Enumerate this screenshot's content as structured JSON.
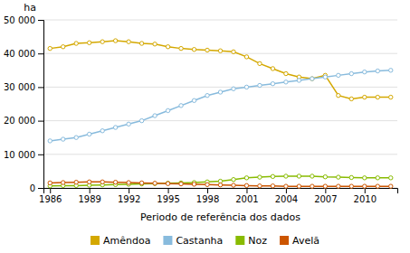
{
  "chart_data": {
    "type": "line",
    "xlabel": "Periodo de referência dos dados",
    "ylabel": "ha",
    "x": [
      1986,
      1987,
      1988,
      1989,
      1990,
      1991,
      1992,
      1993,
      1994,
      1995,
      1996,
      1997,
      1998,
      1999,
      2000,
      2001,
      2002,
      2003,
      2004,
      2005,
      2006,
      2007,
      2008,
      2009,
      2010,
      2011,
      2012
    ],
    "series": [
      {
        "name": "Amêndoa",
        "color": "#D4A800",
        "marker": "circle",
        "values": [
          41500,
          42000,
          43000,
          43200,
          43500,
          43800,
          43500,
          43000,
          42800,
          42000,
          41500,
          41200,
          41000,
          40800,
          40500,
          39000,
          37000,
          35500,
          34000,
          33000,
          32500,
          33500,
          27500,
          26500,
          27000,
          27000,
          27000
        ]
      },
      {
        "name": "Castanha",
        "color": "#88BBDD",
        "marker": "circle",
        "values": [
          14000,
          14500,
          15000,
          16000,
          17000,
          18000,
          19000,
          20000,
          21500,
          23000,
          24500,
          26000,
          27500,
          28500,
          29500,
          30000,
          30500,
          31000,
          31500,
          32000,
          32500,
          33000,
          33500,
          34000,
          34500,
          34800,
          35000
        ]
      },
      {
        "name": "Noz",
        "color": "#88BB00",
        "marker": "circle",
        "values": [
          600,
          700,
          700,
          800,
          900,
          1000,
          1100,
          1200,
          1300,
          1400,
          1500,
          1600,
          1800,
          2000,
          2500,
          3000,
          3200,
          3400,
          3500,
          3500,
          3500,
          3300,
          3200,
          3100,
          3000,
          3000,
          3000
        ]
      },
      {
        "name": "Avelã",
        "color": "#CC5500",
        "marker": "circle",
        "values": [
          1500,
          1600,
          1700,
          1800,
          1800,
          1700,
          1600,
          1500,
          1400,
          1300,
          1200,
          1100,
          1000,
          900,
          800,
          700,
          600,
          600,
          500,
          500,
          500,
          500,
          500,
          500,
          500,
          500,
          500
        ]
      }
    ],
    "xlim": [
      1985.5,
      2012.5
    ],
    "xticks": [
      1986,
      1989,
      1992,
      1995,
      1998,
      2001,
      2004,
      2007,
      2010
    ],
    "ylim": [
      0,
      50000
    ],
    "yticks": [
      0,
      {
        "value": 10000,
        "label": "10 000"
      },
      {
        "value": 20000,
        "label": "20 000"
      },
      {
        "value": 30000,
        "label": "30 000"
      },
      {
        "value": 40000,
        "label": "40 000"
      },
      {
        "value": 50000,
        "label": "50 000"
      }
    ],
    "grid": true,
    "legend": "bottom"
  }
}
